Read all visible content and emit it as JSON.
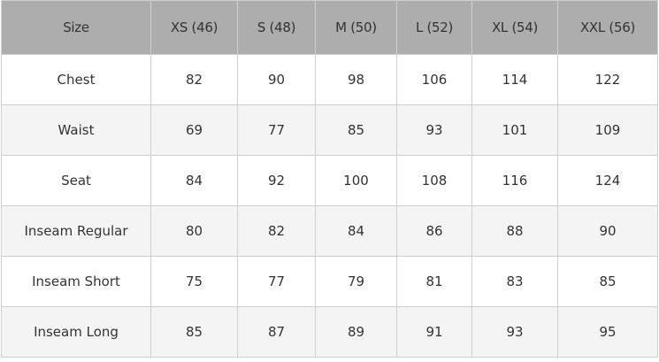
{
  "table": {
    "header": [
      "Size",
      "XS (46)",
      "S (48)",
      "M (50)",
      "L (52)",
      "XL (54)",
      "XXL (56)"
    ],
    "rows": [
      {
        "label": "Chest",
        "values": [
          82,
          90,
          98,
          106,
          114,
          122
        ]
      },
      {
        "label": "Waist",
        "values": [
          69,
          77,
          85,
          93,
          101,
          109
        ]
      },
      {
        "label": "Seat",
        "values": [
          84,
          92,
          100,
          108,
          116,
          124
        ]
      },
      {
        "label": "Inseam Regular",
        "values": [
          80,
          82,
          84,
          86,
          88,
          90
        ]
      },
      {
        "label": "Inseam Short",
        "values": [
          75,
          77,
          79,
          81,
          83,
          85
        ]
      },
      {
        "label": "Inseam Long",
        "values": [
          85,
          87,
          89,
          91,
          93,
          95
        ]
      }
    ]
  }
}
